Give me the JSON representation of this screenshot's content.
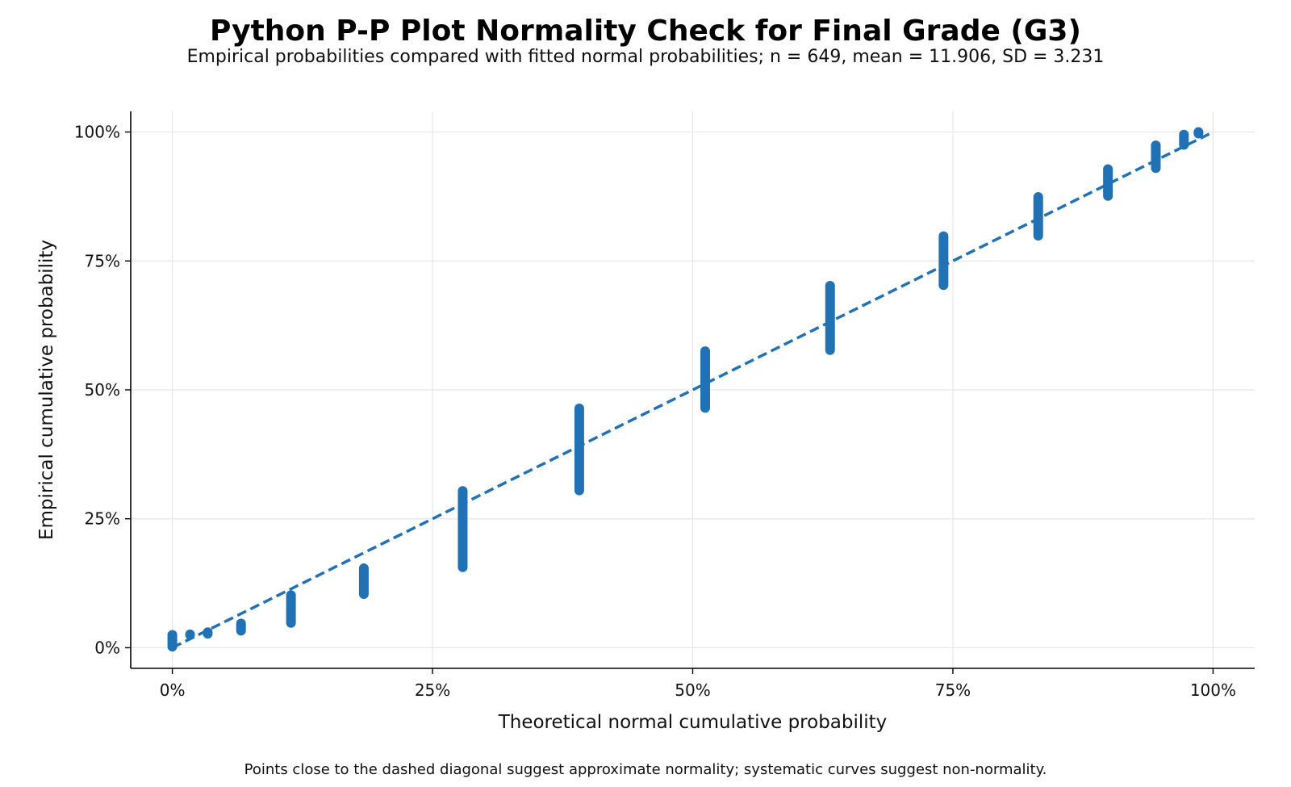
{
  "chart_data": {
    "type": "scatter",
    "title": "Python P-P Plot Normality Check for Final Grade (G3)",
    "subtitle": "Empirical probabilities compared with fitted normal probabilities; n = 649, mean = 11.906, SD = 3.231",
    "xlabel": "Theoretical normal cumulative probability",
    "ylabel": "Empirical cumulative probability",
    "footnote": "Points close to the dashed diagonal suggest approximate normality; systematic curves suggest non-normality.",
    "xlim": [
      -0.04,
      1.04
    ],
    "ylim": [
      -0.04,
      1.04
    ],
    "x_ticks": [
      0,
      0.25,
      0.5,
      0.75,
      1.0
    ],
    "x_tick_labels": [
      "0%",
      "25%",
      "50%",
      "75%",
      "100%"
    ],
    "y_ticks": [
      0,
      0.25,
      0.5,
      0.75,
      1.0
    ],
    "y_tick_labels": [
      "0%",
      "25%",
      "50%",
      "75%",
      "100%"
    ],
    "grid": true,
    "colors": {
      "points": "#2171b5",
      "reference_line": "#2171b5",
      "grid": "#e6e6e6",
      "axis": "#000000"
    },
    "reference_line": {
      "style": "dashed",
      "x": [
        0,
        1
      ],
      "y": [
        0,
        1
      ]
    },
    "series": [
      {
        "points_description": "grouped empirical vs theoretical probabilities (discrete grades)",
        "groups": [
          {
            "x": 0.0,
            "y_min": 0.002,
            "y_max": 0.025
          },
          {
            "x": 0.017,
            "y_min": 0.025,
            "y_max": 0.026
          },
          {
            "x": 0.034,
            "y_min": 0.027,
            "y_max": 0.03
          },
          {
            "x": 0.066,
            "y_min": 0.033,
            "y_max": 0.047
          },
          {
            "x": 0.114,
            "y_min": 0.048,
            "y_max": 0.102
          },
          {
            "x": 0.184,
            "y_min": 0.104,
            "y_max": 0.154
          },
          {
            "x": 0.279,
            "y_min": 0.156,
            "y_max": 0.304
          },
          {
            "x": 0.391,
            "y_min": 0.305,
            "y_max": 0.464
          },
          {
            "x": 0.512,
            "y_min": 0.465,
            "y_max": 0.575
          },
          {
            "x": 0.632,
            "y_min": 0.577,
            "y_max": 0.702
          },
          {
            "x": 0.741,
            "y_min": 0.703,
            "y_max": 0.798
          },
          {
            "x": 0.832,
            "y_min": 0.799,
            "y_max": 0.874
          },
          {
            "x": 0.899,
            "y_min": 0.876,
            "y_max": 0.928
          },
          {
            "x": 0.945,
            "y_min": 0.93,
            "y_max": 0.974
          },
          {
            "x": 0.972,
            "y_min": 0.975,
            "y_max": 0.995
          },
          {
            "x": 0.986,
            "y_min": 0.997,
            "y_max": 1.0
          }
        ]
      }
    ]
  }
}
